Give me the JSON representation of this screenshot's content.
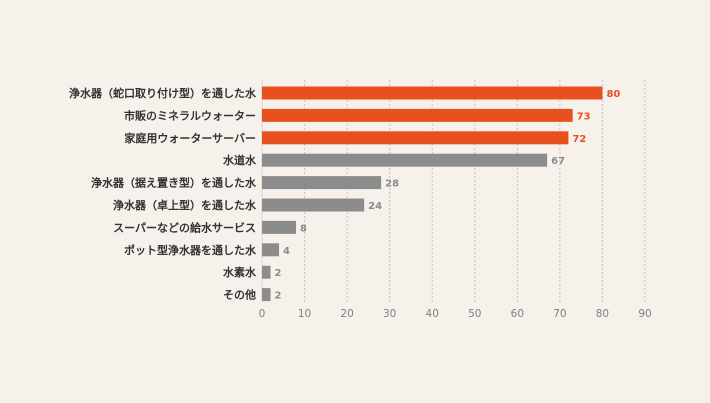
{
  "chart_data": {
    "type": "bar",
    "orientation": "horizontal",
    "categories": [
      "浄水器（蛇口取り付け型）を通した水",
      "市販のミネラルウォーター",
      "家庭用ウォーターサーバー",
      "水道水",
      "浄水器（据え置き型）を通した水",
      "浄水器（卓上型）を通した水",
      "スーパーなどの給水サービス",
      "ポット型浄水器を通した水",
      "水素水",
      "その他"
    ],
    "values": [
      80,
      73,
      72,
      67,
      28,
      24,
      8,
      4,
      2,
      2
    ],
    "value_labels": [
      "80",
      "73",
      "72",
      "67",
      "28",
      "24",
      "8",
      "4",
      "2",
      "2"
    ],
    "highlighted": [
      true,
      true,
      true,
      false,
      false,
      false,
      false,
      false,
      false,
      false
    ],
    "colors": {
      "highlight": "#e8501e",
      "normal": "#8c8c8c",
      "grid": "#cbbdd0",
      "background": "#f7f1ec"
    },
    "xticks": [
      "0",
      "10",
      "20",
      "30",
      "40",
      "50",
      "60",
      "70",
      "80",
      "90"
    ],
    "xlim": [
      0,
      90
    ],
    "grid": true,
    "title": "",
    "xlabel": "",
    "ylabel": ""
  }
}
